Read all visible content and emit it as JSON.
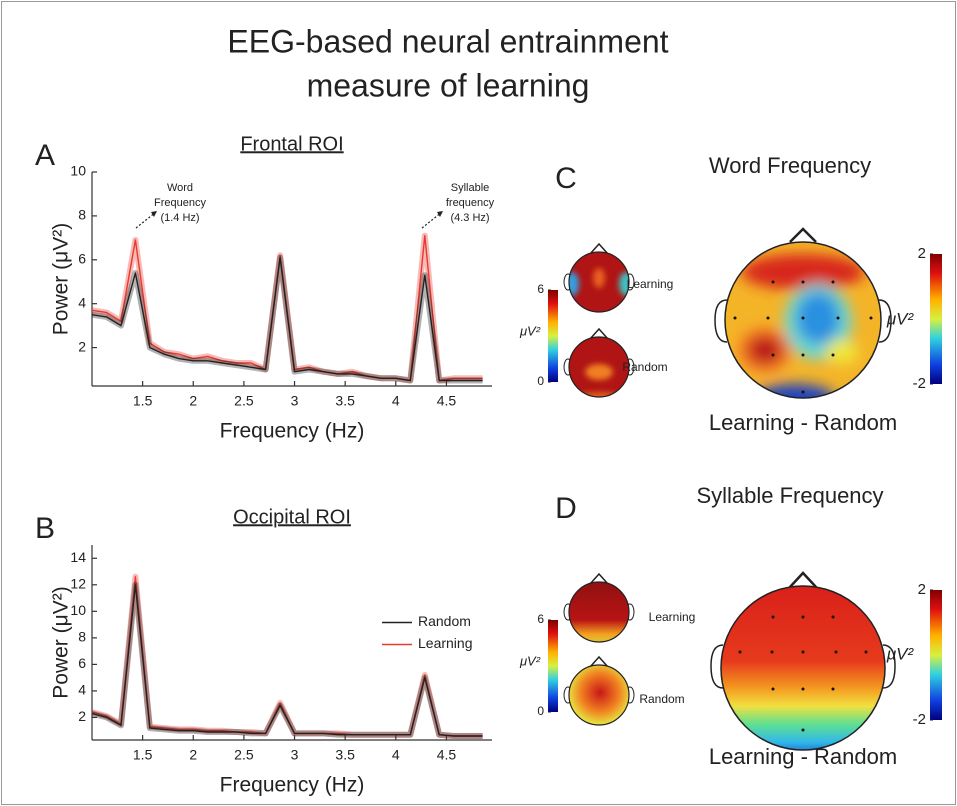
{
  "title": [
    "EEG-based neural entrainment",
    "measure of learning"
  ],
  "chart_data": [
    {
      "type": "line",
      "panel_label": "A",
      "title": "Frontal ROI",
      "x_label": "Frequency (Hz)",
      "y_label": "Power (μV²)",
      "x": [
        1.0,
        1.143,
        1.286,
        1.429,
        1.571,
        1.714,
        1.857,
        2.0,
        2.143,
        2.286,
        2.429,
        2.571,
        2.714,
        2.857,
        3.0,
        3.143,
        3.286,
        3.429,
        3.571,
        3.714,
        3.857,
        4.0,
        4.143,
        4.286,
        4.429,
        4.571,
        4.714,
        4.857
      ],
      "series": [
        {
          "name": "Random",
          "color": "#222222",
          "values": [
            3.5,
            3.4,
            3.0,
            5.4,
            2.0,
            1.7,
            1.5,
            1.4,
            1.4,
            1.3,
            1.2,
            1.1,
            1.0,
            6.1,
            0.9,
            1.0,
            0.9,
            0.8,
            0.8,
            0.7,
            0.6,
            0.6,
            0.5,
            5.3,
            0.5,
            0.5,
            0.5,
            0.5
          ]
        },
        {
          "name": "Learning",
          "color": "#e8382f",
          "values": [
            3.7,
            3.6,
            3.2,
            6.9,
            2.2,
            1.8,
            1.7,
            1.5,
            1.6,
            1.4,
            1.3,
            1.3,
            1.0,
            6.2,
            1.0,
            1.1,
            0.9,
            0.8,
            0.9,
            0.7,
            0.6,
            0.6,
            0.5,
            7.1,
            0.5,
            0.6,
            0.6,
            0.6
          ]
        }
      ],
      "xlim": [
        1,
        4.95
      ],
      "ylim": [
        0.25,
        10
      ],
      "xticks": [
        1.5,
        2,
        2.5,
        3,
        3.5,
        4,
        4.5
      ],
      "yticks": [
        2,
        4,
        6,
        8,
        10
      ],
      "annotations": [
        {
          "lines": [
            "Word",
            "Frequency",
            "(1.4 Hz)"
          ]
        },
        {
          "lines": [
            "Syllable",
            "frequency",
            "(4.3 Hz)"
          ]
        }
      ]
    },
    {
      "type": "line",
      "panel_label": "B",
      "title": "Occipital ROI",
      "x_label": "Frequency (Hz)",
      "y_label": "Power (μV²)",
      "x": [
        1.0,
        1.143,
        1.286,
        1.429,
        1.571,
        1.714,
        1.857,
        2.0,
        2.143,
        2.286,
        2.429,
        2.571,
        2.714,
        2.857,
        3.0,
        3.143,
        3.286,
        3.429,
        3.571,
        3.714,
        3.857,
        4.0,
        4.143,
        4.286,
        4.429,
        4.571,
        4.714,
        4.857
      ],
      "series": [
        {
          "name": "Random",
          "color": "#222222",
          "values": [
            2.3,
            2.0,
            1.4,
            12.0,
            1.2,
            1.1,
            1.0,
            1.0,
            0.9,
            0.9,
            0.9,
            0.8,
            0.8,
            2.9,
            0.8,
            0.8,
            0.8,
            0.7,
            0.7,
            0.7,
            0.7,
            0.7,
            0.7,
            5.0,
            0.7,
            0.6,
            0.6,
            0.6
          ]
        },
        {
          "name": "Learning",
          "color": "#e8382f",
          "values": [
            2.4,
            2.1,
            1.5,
            12.6,
            1.3,
            1.2,
            1.1,
            1.1,
            1.0,
            1.0,
            0.9,
            0.9,
            0.8,
            3.1,
            0.8,
            0.8,
            0.8,
            0.8,
            0.7,
            0.7,
            0.7,
            0.7,
            0.7,
            5.2,
            0.7,
            0.6,
            0.6,
            0.6
          ]
        }
      ],
      "xlim": [
        1,
        4.95
      ],
      "ylim": [
        0.3,
        15
      ],
      "xticks": [
        1.5,
        2,
        2.5,
        3,
        3.5,
        4,
        4.5
      ],
      "yticks": [
        2,
        4,
        6,
        8,
        10,
        12,
        14
      ],
      "legend": "right"
    }
  ],
  "topo_panels": [
    {
      "label": "C",
      "title": "Word Frequency",
      "conditions": [
        "Learning",
        "Random"
      ],
      "condition_colorbar": {
        "clim": [
          0,
          6
        ],
        "ticks": [
          0,
          6
        ],
        "unit": "μV²"
      },
      "difference_colorbar": {
        "clim": [
          -2,
          2
        ],
        "ticks": [
          -2,
          2
        ],
        "unit": "μV²"
      },
      "difference_label": "Learning - Random"
    },
    {
      "label": "D",
      "title": "Syllable Frequency",
      "conditions": [
        "Learning",
        "Random"
      ],
      "condition_colorbar": {
        "clim": [
          0,
          6
        ],
        "ticks": [
          0,
          6
        ],
        "unit": "μV²"
      },
      "difference_colorbar": {
        "clim": [
          -2,
          2
        ],
        "ticks": [
          -2,
          2
        ],
        "unit": "μV²"
      },
      "difference_label": "Learning - Random"
    }
  ]
}
